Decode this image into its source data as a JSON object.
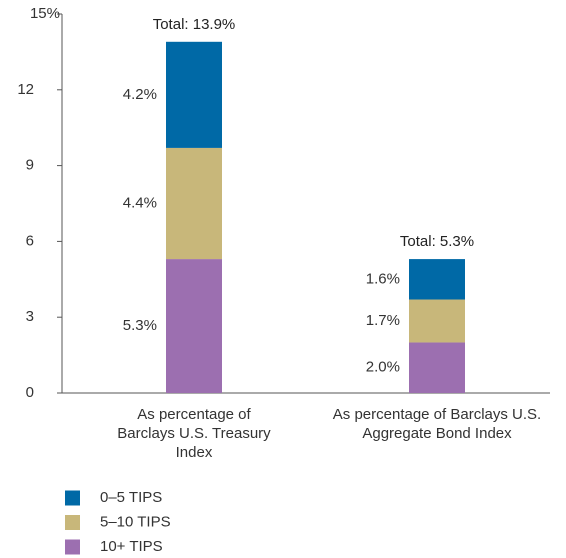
{
  "chart_data": {
    "type": "stacked_bar",
    "categories": [
      "As percentage of Barclays U.S. Treasury Index",
      "As percentage of Barclays U.S. Aggregate Bond Index"
    ],
    "series": [
      {
        "name": "0–5 TIPS",
        "color": "#0069a6",
        "values": [
          4.2,
          1.6
        ],
        "value_labels": [
          "4.2%",
          "1.6%"
        ]
      },
      {
        "name": "5–10 TIPS",
        "color": "#c8b77a",
        "values": [
          4.4,
          1.7
        ],
        "value_labels": [
          "4.4%",
          "1.7%"
        ]
      },
      {
        "name": "10+ TIPS",
        "color": "#9c6fb0",
        "values": [
          5.3,
          2.0
        ],
        "value_labels": [
          "5.3%",
          "2.0%"
        ]
      }
    ],
    "total_labels": [
      "Total: 13.9%",
      "Total: 5.3%"
    ],
    "ylim": [
      0,
      15
    ],
    "yticks": [
      0,
      3,
      6,
      9,
      12,
      {
        "value": 15,
        "label": "15%"
      }
    ]
  }
}
